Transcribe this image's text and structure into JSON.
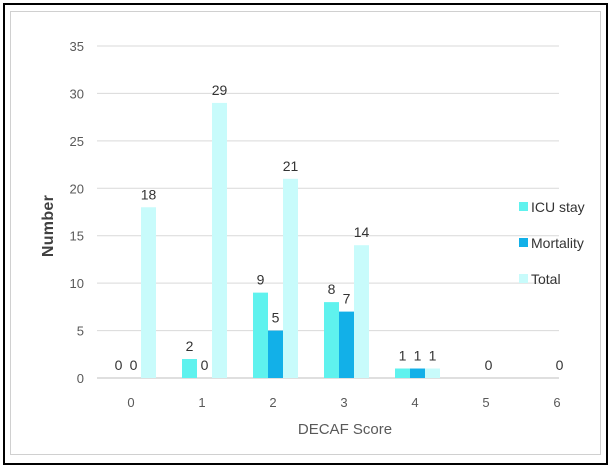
{
  "chart_data": {
    "type": "bar",
    "xlabel": "DECAF Score",
    "ylabel": "Number",
    "categories": [
      "0",
      "1",
      "2",
      "3",
      "4",
      "5",
      "6"
    ],
    "ylim": [
      0,
      35
    ],
    "yticks": [
      0,
      5,
      10,
      15,
      20,
      25,
      30,
      35
    ],
    "grid": true,
    "legend_position": "right",
    "series": [
      {
        "name": "ICU stay",
        "color": "#5ff2ee",
        "values": [
          0,
          2,
          9,
          8,
          1,
          0,
          0
        ],
        "labels": [
          "0",
          "2",
          "9",
          "8",
          "1",
          "",
          ""
        ]
      },
      {
        "name": "Mortality",
        "color": "#12b0e8",
        "values": [
          0,
          0,
          5,
          7,
          1,
          0,
          0
        ],
        "labels": [
          "0",
          "0",
          "5",
          "7",
          "1",
          "0",
          "0"
        ]
      },
      {
        "name": "Total",
        "color": "#c8fbfb",
        "values": [
          18,
          29,
          21,
          14,
          1,
          0,
          0
        ],
        "labels": [
          "18",
          "29",
          "21",
          "14",
          "1",
          "",
          ""
        ]
      }
    ]
  }
}
